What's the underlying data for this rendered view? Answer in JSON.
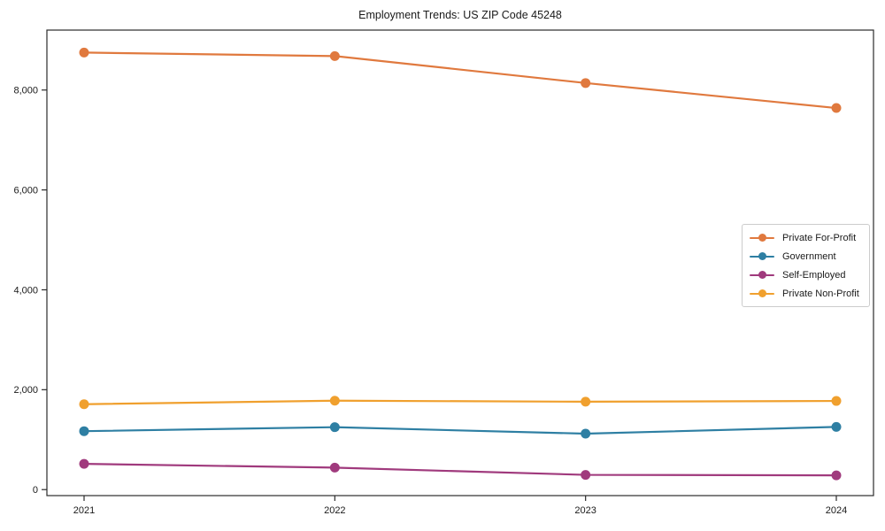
{
  "figure": {
    "title": "Employment Trends: US ZIP Code 45248"
  },
  "chart_data": {
    "type": "line",
    "title": "Employment Trends: US ZIP Code 45248",
    "xlabel": "",
    "ylabel": "",
    "categories": [
      "2021",
      "2022",
      "2023",
      "2024"
    ],
    "series": [
      {
        "name": "Private For-Profit",
        "color": "#e0793e",
        "values": [
          8750,
          8680,
          8140,
          7640
        ]
      },
      {
        "name": "Government",
        "color": "#2e7fa3",
        "values": [
          1170,
          1250,
          1120,
          1255
        ]
      },
      {
        "name": "Self-Employed",
        "color": "#a03a7d",
        "values": [
          515,
          440,
          295,
          285
        ]
      },
      {
        "name": "Private Non-Profit",
        "color": "#f0a02e",
        "values": [
          1710,
          1780,
          1760,
          1775
        ]
      }
    ],
    "ylim": [
      -120,
      9200
    ],
    "yticks": {
      "values": [
        0,
        2000,
        4000,
        6000,
        8000
      ],
      "labels": [
        "0",
        "2,000",
        "4,000",
        "6,000",
        "8,000"
      ]
    },
    "grid": false,
    "legend_position": "center right",
    "frame_color": "#2b2b2b",
    "tick_text_color": "#1a1a1a",
    "marker_radius": 5.5,
    "line_width": 2.2
  }
}
